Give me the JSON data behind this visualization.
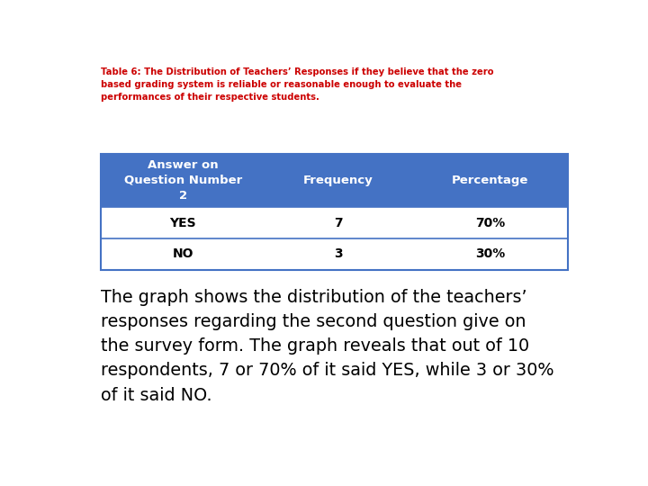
{
  "title_line1": "Table 6: The Distribution of Teachers’ Responses if they believe that the zero",
  "title_line2": "based grading system is reliable or reasonable enough to evaluate the",
  "title_line3": "performances of their respective students.",
  "title_color": "#cc0000",
  "header_bg_color": "#4472c4",
  "header_text_color": "#ffffff",
  "header_col1": "Answer on\nQuestion Number\n2",
  "header_col2": "Frequency",
  "header_col3": "Percentage",
  "row1": [
    "YES",
    "7",
    "70%"
  ],
  "row2": [
    "NO",
    "3",
    "30%"
  ],
  "row_bg_color": "#ffffff",
  "row_text_color": "#000000",
  "border_color": "#4472c4",
  "body_text": "The graph shows the distribution of the teachers’\nresponses regarding the second question give on\nthe survey form. The graph reveals that out of 10\nrespondents, 7 or 70% of it said YES, while 3 or 30%\nof it said NO.",
  "body_text_color": "#000000",
  "bg_color": "#ffffff"
}
